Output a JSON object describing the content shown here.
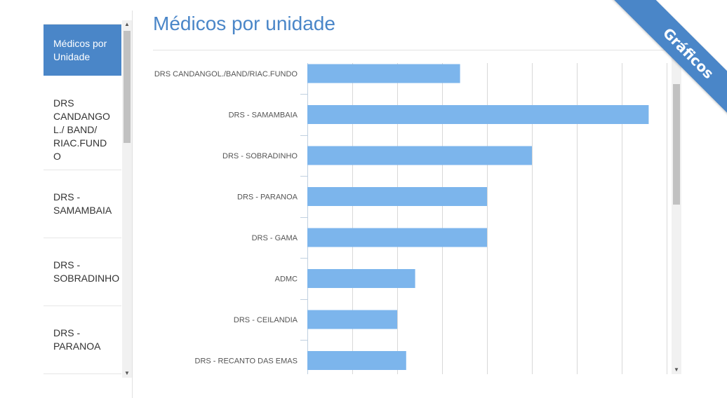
{
  "header": {
    "title": "Médicos por unidade"
  },
  "ribbon": {
    "label": "Gráficos"
  },
  "sidebar": {
    "items": [
      {
        "label": "Médicos por Unidade",
        "active": true
      },
      {
        "label": "DRS CANDANGOL./ BAND/ RIAC.FUNDO"
      },
      {
        "label": "DRS - SAMAMBAIA"
      },
      {
        "label": "DRS - SOBRADINHO"
      },
      {
        "label": "DRS - PARANOA"
      }
    ]
  },
  "colors": {
    "accent": "#4a86c8",
    "bar": "#7cb5ec",
    "grid": "#d8d8d8"
  },
  "chart_data": {
    "type": "bar",
    "orientation": "horizontal",
    "categories": [
      "DRS CANDANGOL./BAND/RIAC.FUNDO",
      "DRS - SAMAMBAIA",
      "DRS - SOBRADINHO",
      "DRS - PARANOA",
      "DRS - GAMA",
      "ADMC",
      "DRS - CEILANDIA",
      "DRS - RECANTO DAS EMAS"
    ],
    "values": [
      34,
      76,
      50,
      40,
      40,
      24,
      20,
      22
    ],
    "xlim": [
      0,
      80
    ],
    "grid": true
  }
}
